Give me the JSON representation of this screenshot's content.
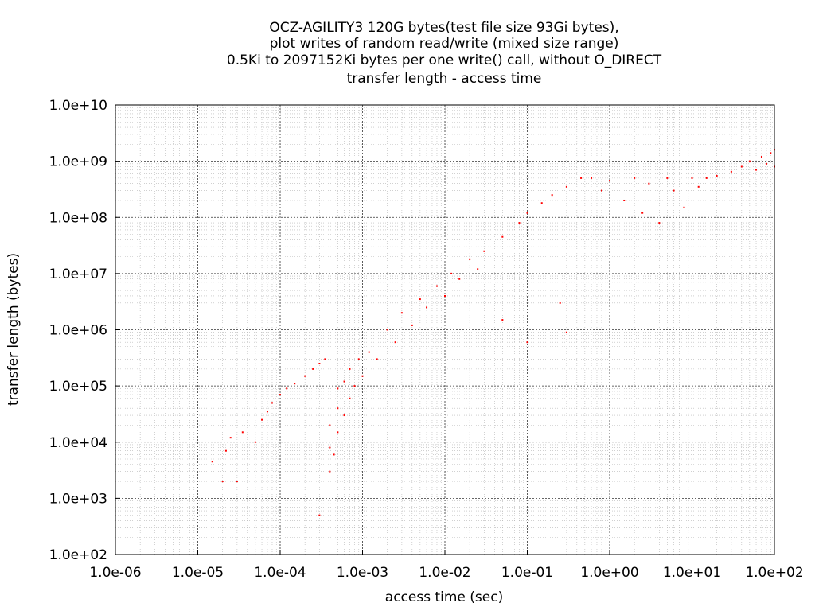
{
  "chart_data": {
    "type": "scatter",
    "title_lines": [
      "OCZ-AGILITY3 120G bytes(test file size 93Gi bytes),",
      "plot writes of random read/write (mixed size range)",
      "0.5Ki to 2097152Ki bytes per one write() call, without O_DIRECT",
      "transfer length - access time"
    ],
    "xlabel": "access time (sec)",
    "ylabel": "transfer length (bytes)",
    "x_scale": "log",
    "y_scale": "log",
    "xlim": [
      1e-06,
      100
    ],
    "ylim": [
      100,
      10000000000.0
    ],
    "x_ticks": [
      "1.0e-06",
      "1.0e-05",
      "1.0e-04",
      "1.0e-03",
      "1.0e-02",
      "1.0e-01",
      "1.0e+00",
      "1.0e+01",
      "1.0e+02"
    ],
    "y_ticks": [
      "1.0e+02",
      "1.0e+03",
      "1.0e+04",
      "1.0e+05",
      "1.0e+06",
      "1.0e+07",
      "1.0e+08",
      "1.0e+09",
      "1.0e+10"
    ],
    "grid": true,
    "legend": "none",
    "point_color": "#ff0000",
    "series": [
      {
        "points": [
          [
            1.5e-05,
            4500
          ],
          [
            2e-05,
            2000
          ],
          [
            2.2e-05,
            7000
          ],
          [
            2.5e-05,
            12000
          ],
          [
            3e-05,
            2000
          ],
          [
            3.5e-05,
            15000
          ],
          [
            5e-05,
            10000
          ],
          [
            6e-05,
            25000
          ],
          [
            7e-05,
            35000
          ],
          [
            8e-05,
            50000
          ],
          [
            0.0001,
            70000
          ],
          [
            0.00012,
            90000
          ],
          [
            0.00015,
            110000
          ],
          [
            0.0002,
            150000
          ],
          [
            0.00025,
            200000
          ],
          [
            0.0003,
            500
          ],
          [
            0.0003,
            250000
          ],
          [
            0.00035,
            300000
          ],
          [
            0.0004,
            3000
          ],
          [
            0.0004,
            8000
          ],
          [
            0.0004,
            20000
          ],
          [
            0.00045,
            6000
          ],
          [
            0.0005,
            15000
          ],
          [
            0.0005,
            40000
          ],
          [
            0.0005,
            90000
          ],
          [
            0.0006,
            30000
          ],
          [
            0.0006,
            120000
          ],
          [
            0.0007,
            60000
          ],
          [
            0.0007,
            200000
          ],
          [
            0.0008,
            100000
          ],
          [
            0.0009,
            300000
          ],
          [
            0.001,
            150000
          ],
          [
            0.0012,
            400000
          ],
          [
            0.0015,
            300000
          ],
          [
            0.002,
            1000000
          ],
          [
            0.0025,
            600000
          ],
          [
            0.003,
            2000000
          ],
          [
            0.004,
            1200000
          ],
          [
            0.005,
            3500000
          ],
          [
            0.006,
            2500000
          ],
          [
            0.008,
            6000000
          ],
          [
            0.01,
            4000000
          ],
          [
            0.012,
            10000000
          ],
          [
            0.015,
            8000000
          ],
          [
            0.02,
            18000000
          ],
          [
            0.025,
            12000000
          ],
          [
            0.03,
            25000000
          ],
          [
            0.05,
            45000000
          ],
          [
            0.08,
            80000000
          ],
          [
            0.1,
            120000000
          ],
          [
            0.15,
            180000000
          ],
          [
            0.2,
            250000000
          ],
          [
            0.3,
            350000000
          ],
          [
            0.45,
            500000000
          ],
          [
            0.05,
            1500000
          ],
          [
            0.1,
            600000
          ],
          [
            0.25,
            3000000
          ],
          [
            0.3,
            900000
          ],
          [
            0.6,
            500000000
          ],
          [
            0.8,
            300000000
          ],
          [
            1,
            450000000
          ],
          [
            1.5,
            200000000
          ],
          [
            2,
            500000000
          ],
          [
            2.5,
            120000000
          ],
          [
            3,
            400000000
          ],
          [
            4,
            80000000
          ],
          [
            5,
            500000000
          ],
          [
            6,
            300000000
          ],
          [
            8,
            150000000
          ],
          [
            10,
            500000000
          ],
          [
            12,
            350000000
          ],
          [
            15,
            500000000
          ],
          [
            20,
            550000000
          ],
          [
            30,
            650000000
          ],
          [
            40,
            800000000
          ],
          [
            50,
            1000000000
          ],
          [
            60,
            700000000
          ],
          [
            70,
            1200000000
          ],
          [
            80,
            900000000
          ],
          [
            90,
            1400000000
          ],
          [
            100,
            1600000000
          ],
          [
            100,
            800000000
          ]
        ]
      }
    ]
  }
}
